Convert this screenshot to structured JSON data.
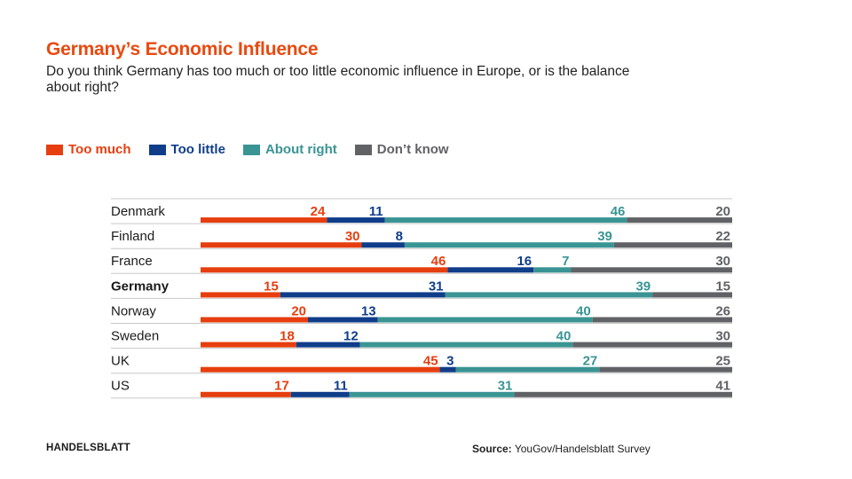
{
  "title": "Germany’s Economic Influence",
  "subtitle": "Do you think Germany has too much or too little economic influence in Europe, or is the balance about right?",
  "colors": {
    "too_much": "#e63e0e",
    "too_little": "#0f3d8a",
    "about_right": "#3a9494",
    "dont_know": "#606266",
    "rule": "#c8c8c8"
  },
  "footer": {
    "brand": "HANDELSBLATT",
    "source_label": "Source:",
    "source_text": "YouGov/Handelsblatt Survey"
  },
  "chart_data": {
    "type": "bar",
    "stacked": true,
    "orientation": "horizontal",
    "normalized_to_100": true,
    "legend_position": "top-left",
    "categories": [
      "Denmark",
      "Finland",
      "France",
      "Germany",
      "Norway",
      "Sweden",
      "UK",
      "US"
    ],
    "highlight_category": "Germany",
    "series": [
      {
        "name": "Too much",
        "color": "#e63e0e",
        "values": [
          24,
          30,
          46,
          15,
          20,
          18,
          45,
          17
        ]
      },
      {
        "name": "Too little",
        "color": "#0f3d8a",
        "values": [
          11,
          8,
          16,
          31,
          13,
          12,
          3,
          11
        ]
      },
      {
        "name": "About right",
        "color": "#3a9494",
        "values": [
          46,
          39,
          7,
          39,
          40,
          40,
          27,
          31
        ]
      },
      {
        "name": "Don’t know",
        "color": "#606266",
        "values": [
          20,
          22,
          30,
          15,
          26,
          30,
          25,
          41
        ]
      }
    ]
  }
}
